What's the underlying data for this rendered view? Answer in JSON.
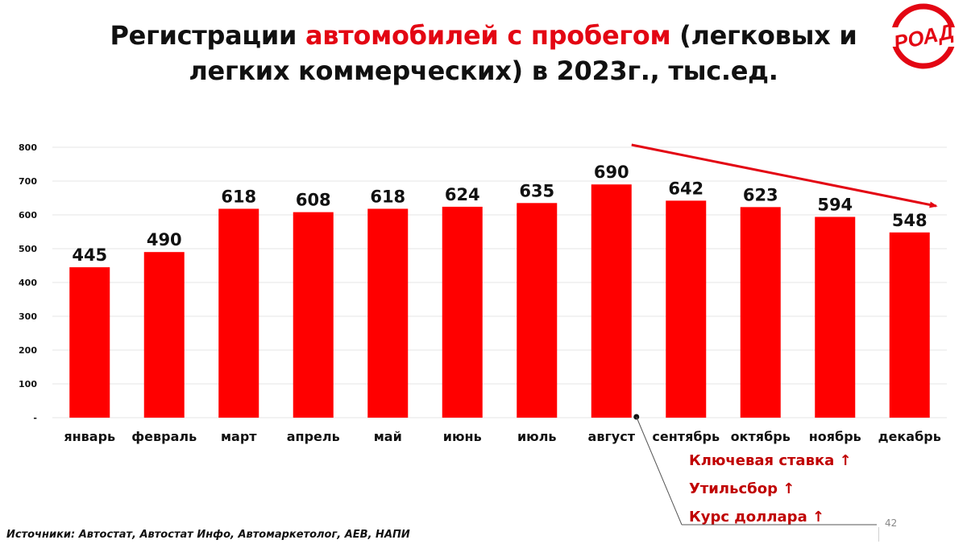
{
  "title": {
    "part1": "Регистрации ",
    "accent": "автомобилей с пробегом",
    "part2": " (легковых и",
    "line2": "легких коммерческих) в 2023г., тыс.ед."
  },
  "logo": {
    "text": "РОАД",
    "color": "#e30613"
  },
  "chart_data": {
    "type": "bar",
    "categories": [
      "январь",
      "февраль",
      "март",
      "апрель",
      "май",
      "июнь",
      "июль",
      "август",
      "сентябрь",
      "октябрь",
      "ноябрь",
      "декабрь"
    ],
    "values": [
      445,
      490,
      618,
      608,
      618,
      624,
      635,
      690,
      642,
      623,
      594,
      548
    ],
    "data_labels": [
      "445",
      "490",
      "618",
      "608",
      "618",
      "624",
      "635",
      "690",
      "642",
      "623",
      "594",
      "548"
    ],
    "ylim": [
      0,
      800
    ],
    "yticks": [
      0,
      100,
      200,
      300,
      400,
      500,
      600,
      700,
      800
    ],
    "ytick_labels": [
      "-",
      "100",
      "200",
      "300",
      "400",
      "500",
      "600",
      "700",
      "800"
    ],
    "grid": true,
    "bar_color": "#ff0000",
    "trend_arrow": {
      "from_category": "август",
      "to_category": "декабрь",
      "direction": "down",
      "color": "#e30613"
    }
  },
  "notes": [
    "Ключевая ставка ↑",
    "Утильсбор ↑",
    "Курс доллара ↑"
  ],
  "page_number": "42",
  "sources": "Источники: Автостат, Автостат Инфо, Автомаркетолог, АЕВ, НАПИ"
}
